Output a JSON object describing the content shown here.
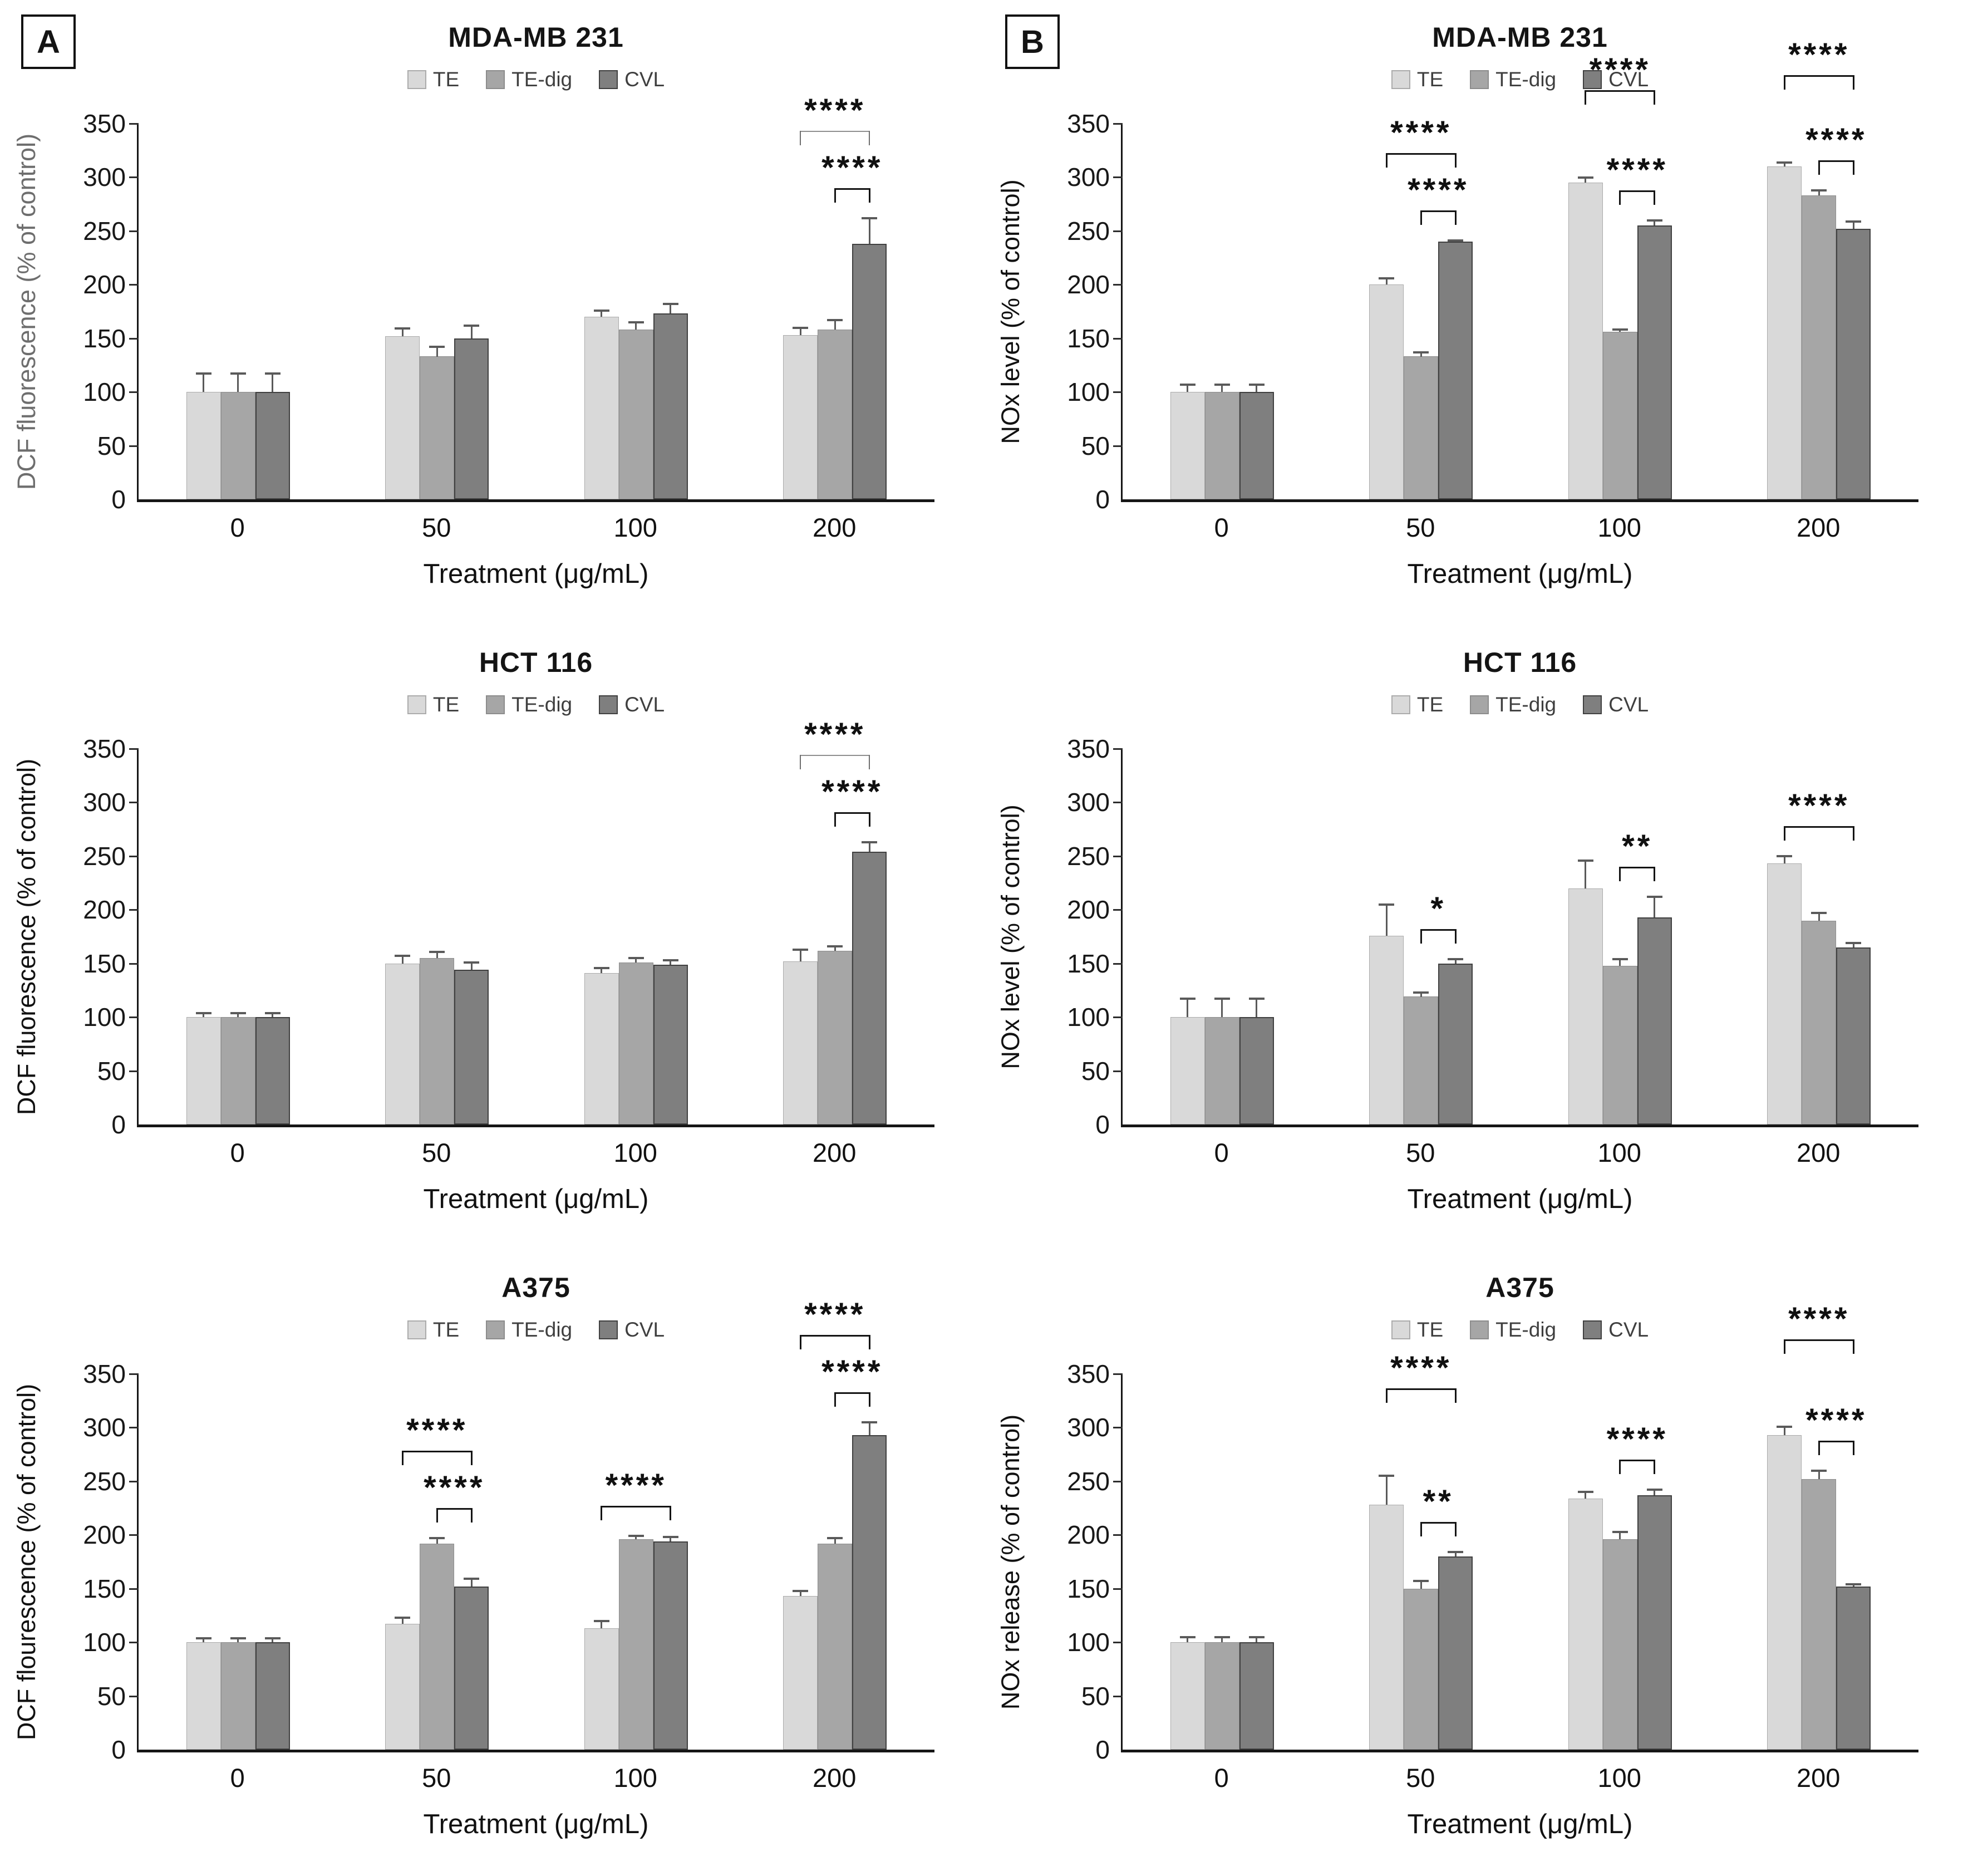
{
  "figure": {
    "x_label": "Treatment (μg/mL)",
    "y_ticks": [
      0,
      50,
      100,
      150,
      200,
      250,
      300,
      350
    ],
    "legend": {
      "items": [
        {
          "label": "TE",
          "color": "#d9d9d9",
          "border": "#ababab"
        },
        {
          "label": "TE-dig",
          "color": "#a6a6a6",
          "border": "#8c8c8c"
        },
        {
          "label": "CVL",
          "color": "#7f7f7f",
          "border": "#404040"
        }
      ]
    }
  },
  "chart_data": [
    {
      "type": "bar",
      "panel": "A",
      "title": "MDA-MB 231",
      "y_label": "DCF fluorescence (% of control)",
      "y_label_color": "#6e6e6e",
      "ylim": [
        0,
        350
      ],
      "legend_position": "top",
      "categories": [
        "0",
        "50",
        "100",
        "200"
      ],
      "series": [
        {
          "name": "TE",
          "values": [
            100,
            152,
            170,
            153
          ],
          "errors": [
            18,
            8,
            7,
            8
          ]
        },
        {
          "name": "TE-dig",
          "values": [
            100,
            133,
            158,
            158
          ],
          "errors": [
            18,
            10,
            8,
            10
          ]
        },
        {
          "name": "CVL",
          "values": [
            100,
            150,
            173,
            238
          ],
          "errors": [
            18,
            13,
            10,
            25
          ]
        }
      ],
      "significance": [
        {
          "group": "200",
          "from": "TE",
          "to": "CVL",
          "label": "****",
          "level": 2,
          "thin": true
        },
        {
          "group": "200",
          "from": "TE-dig",
          "to": "CVL",
          "label": "****",
          "level": 1
        }
      ]
    },
    {
      "type": "bar",
      "panel": "B",
      "title": "MDA-MB 231",
      "y_label": "NOx level (% of control)",
      "ylim": [
        0,
        350
      ],
      "legend_position": "top",
      "categories": [
        "0",
        "50",
        "100",
        "200"
      ],
      "series": [
        {
          "name": "TE",
          "values": [
            100,
            200,
            295,
            310
          ],
          "errors": [
            8,
            7,
            6,
            5
          ]
        },
        {
          "name": "TE-dig",
          "values": [
            100,
            133,
            156,
            283
          ],
          "errors": [
            8,
            5,
            3,
            6
          ]
        },
        {
          "name": "CVL",
          "values": [
            100,
            240,
            255,
            252
          ],
          "errors": [
            8,
            2,
            6,
            8
          ]
        }
      ],
      "significance": [
        {
          "group": "50",
          "from": "TE",
          "to": "CVL",
          "label": "****",
          "level": 2
        },
        {
          "group": "50",
          "from": "TE-dig",
          "to": "CVL",
          "label": "****",
          "level": 1
        },
        {
          "group": "100",
          "from": "TE",
          "to": "CVL",
          "label": "****",
          "level": 2
        },
        {
          "group": "100",
          "from": "TE-dig",
          "to": "CVL",
          "label": "****",
          "level": 1
        },
        {
          "group": "200",
          "from": "TE",
          "to": "CVL",
          "label": "****",
          "level": 2
        },
        {
          "group": "200",
          "from": "TE-dig",
          "to": "CVL",
          "label": "****",
          "level": 1
        }
      ]
    },
    {
      "type": "bar",
      "title": "HCT 116",
      "y_label": "DCF fluorescence (% of control)",
      "ylim": [
        0,
        350
      ],
      "legend_position": "top",
      "categories": [
        "0",
        "50",
        "100",
        "200"
      ],
      "series": [
        {
          "name": "TE",
          "values": [
            100,
            150,
            141,
            152
          ],
          "errors": [
            5,
            8,
            6,
            12
          ]
        },
        {
          "name": "TE-dig",
          "values": [
            100,
            155,
            151,
            162
          ],
          "errors": [
            5,
            7,
            5,
            5
          ]
        },
        {
          "name": "CVL",
          "values": [
            100,
            144,
            149,
            254
          ],
          "errors": [
            5,
            8,
            5,
            10
          ]
        }
      ],
      "significance": [
        {
          "group": "200",
          "from": "TE",
          "to": "CVL",
          "label": "****",
          "level": 2,
          "thin": true
        },
        {
          "group": "200",
          "from": "TE-dig",
          "to": "CVL",
          "label": "****",
          "level": 1
        }
      ]
    },
    {
      "type": "bar",
      "title": "HCT 116",
      "y_label": "NOx level (% of control)",
      "ylim": [
        0,
        350
      ],
      "legend_position": "top",
      "categories": [
        "0",
        "50",
        "100",
        "200"
      ],
      "series": [
        {
          "name": "TE",
          "values": [
            100,
            176,
            220,
            243
          ],
          "errors": [
            18,
            30,
            27,
            8
          ]
        },
        {
          "name": "TE-dig",
          "values": [
            100,
            119,
            148,
            190
          ],
          "errors": [
            18,
            5,
            7,
            8
          ]
        },
        {
          "name": "CVL",
          "values": [
            100,
            150,
            193,
            165
          ],
          "errors": [
            18,
            5,
            20,
            5
          ]
        }
      ],
      "significance": [
        {
          "group": "50",
          "from": "TE-dig",
          "to": "CVL",
          "label": "*",
          "level": 1
        },
        {
          "group": "100",
          "from": "TE-dig",
          "to": "CVL",
          "label": "**",
          "level": 1
        },
        {
          "group": "200",
          "from": "TE",
          "to": "CVL",
          "label": "****",
          "level": 1
        }
      ]
    },
    {
      "type": "bar",
      "title": "A375",
      "y_label": "DCF flourescence (% of control)",
      "ylim": [
        0,
        350
      ],
      "legend_position": "top",
      "categories": [
        "0",
        "50",
        "100",
        "200"
      ],
      "series": [
        {
          "name": "TE",
          "values": [
            100,
            117,
            113,
            143
          ],
          "errors": [
            5,
            7,
            8,
            6
          ]
        },
        {
          "name": "TE-dig",
          "values": [
            100,
            192,
            196,
            192
          ],
          "errors": [
            5,
            6,
            4,
            6
          ]
        },
        {
          "name": "CVL",
          "values": [
            100,
            152,
            194,
            293
          ],
          "errors": [
            5,
            8,
            5,
            13
          ]
        }
      ],
      "significance": [
        {
          "group": "50",
          "from": "TE",
          "to": "CVL",
          "label": "****",
          "level": 2
        },
        {
          "group": "50",
          "from": "TE-dig",
          "to": "CVL",
          "label": "****",
          "level": 1
        },
        {
          "group": "100",
          "from": "TE",
          "to": "CVL",
          "label": "****",
          "level": 1
        },
        {
          "group": "200",
          "from": "TE",
          "to": "CVL",
          "label": "****",
          "level": 2
        },
        {
          "group": "200",
          "from": "TE-dig",
          "to": "CVL",
          "label": "****",
          "level": 1
        }
      ]
    },
    {
      "type": "bar",
      "title": "A375",
      "y_label": "NOx release (% of control)",
      "ylim": [
        0,
        350
      ],
      "legend_position": "top",
      "categories": [
        "0",
        "50",
        "100",
        "200"
      ],
      "series": [
        {
          "name": "TE",
          "values": [
            100,
            228,
            234,
            293
          ],
          "errors": [
            6,
            28,
            7,
            9
          ]
        },
        {
          "name": "TE-dig",
          "values": [
            100,
            150,
            196,
            252
          ],
          "errors": [
            6,
            8,
            8,
            9
          ]
        },
        {
          "name": "CVL",
          "values": [
            100,
            180,
            237,
            152
          ],
          "errors": [
            6,
            5,
            6,
            3
          ]
        }
      ],
      "significance": [
        {
          "group": "50",
          "from": "TE",
          "to": "CVL",
          "label": "****",
          "level": 2
        },
        {
          "group": "50",
          "from": "TE-dig",
          "to": "CVL",
          "label": "**",
          "level": 1
        },
        {
          "group": "100",
          "from": "TE-dig",
          "to": "CVL",
          "label": "****",
          "level": 1
        },
        {
          "group": "200",
          "from": "TE",
          "to": "CVL",
          "label": "****",
          "level": 2
        },
        {
          "group": "200",
          "from": "TE-dig",
          "to": "CVL",
          "label": "****",
          "level": 1
        }
      ]
    }
  ]
}
